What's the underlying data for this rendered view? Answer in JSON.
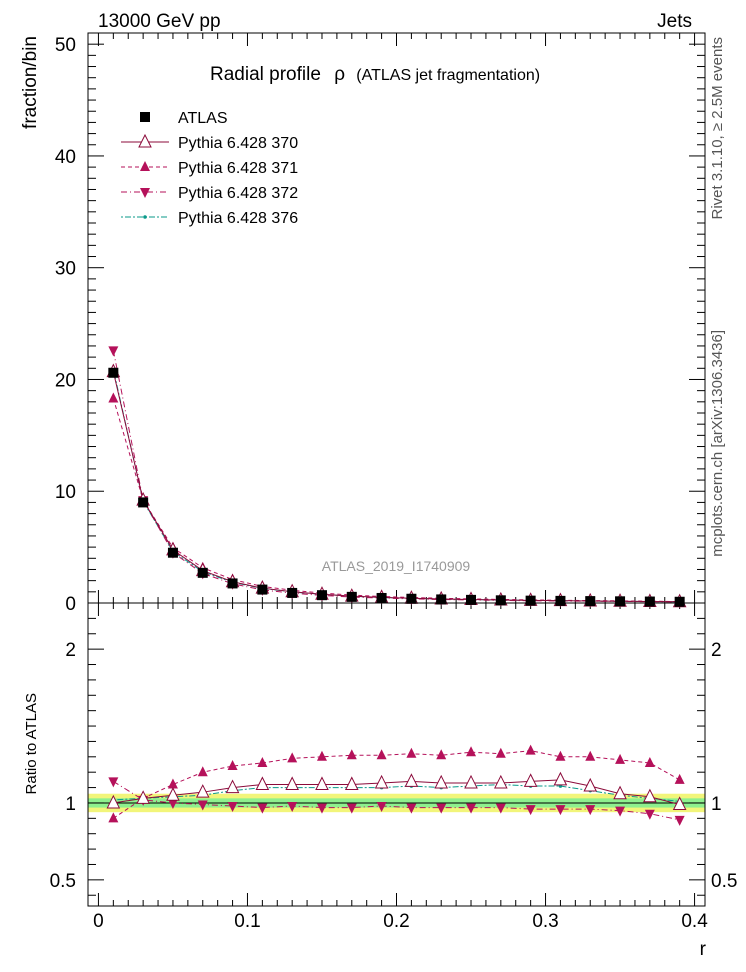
{
  "header": {
    "left": "13000 GeV pp",
    "right": "Jets"
  },
  "title": {
    "main": "Radial profile",
    "symbol": "ρ",
    "sub": "(ATLAS jet fragmentation)"
  },
  "side_labels": {
    "rivet": "Rivet 3.1.10, ≥ 2.5M events",
    "mcplots": "mcplots.cern.ch [arXiv:1306.3436]"
  },
  "watermark": "ATLAS_2019_I1740909",
  "chart_data": [
    {
      "type": "scatter",
      "panel": "main",
      "ylabel": "fraction/bin",
      "xlabel": "",
      "xlim": [
        -0.007,
        0.407
      ],
      "ylim": [
        0,
        51
      ],
      "yticks": [
        0,
        10,
        20,
        30,
        40,
        50
      ],
      "ytick_labels": [
        "0",
        "10",
        "20",
        "30",
        "40",
        "50"
      ],
      "legend_position": "top-left",
      "x": [
        0.01,
        0.03,
        0.05,
        0.07,
        0.09,
        0.11,
        0.13,
        0.15,
        0.17,
        0.19,
        0.21,
        0.23,
        0.25,
        0.27,
        0.29,
        0.31,
        0.33,
        0.35,
        0.37,
        0.39
      ],
      "series": [
        {
          "name": "ATLAS",
          "color": "#000000",
          "marker": "square",
          "values": [
            20.6,
            9.0,
            4.5,
            2.7,
            1.75,
            1.2,
            0.9,
            0.7,
            0.55,
            0.45,
            0.38,
            0.32,
            0.28,
            0.24,
            0.21,
            0.19,
            0.17,
            0.15,
            0.13,
            0.11
          ]
        },
        {
          "name": "Pythia 6.428 370",
          "color": "#8b0a3a",
          "marker": "triangle-open",
          "dash": "",
          "values": [
            20.7,
            9.2,
            4.75,
            2.9,
            1.9,
            1.33,
            1.01,
            0.78,
            0.61,
            0.5,
            0.43,
            0.36,
            0.31,
            0.27,
            0.24,
            0.21,
            0.18,
            0.16,
            0.135,
            0.11
          ]
        },
        {
          "name": "Pythia 6.428 371",
          "color": "#b5115a",
          "marker": "triangle-up",
          "dash": "4,3",
          "values": [
            18.3,
            9.2,
            4.95,
            3.15,
            2.1,
            1.48,
            1.14,
            0.89,
            0.71,
            0.58,
            0.5,
            0.42,
            0.37,
            0.32,
            0.28,
            0.245,
            0.22,
            0.19,
            0.165,
            0.125
          ]
        },
        {
          "name": "Pythia 6.428 372",
          "color": "#b5115a",
          "marker": "triangle-down",
          "dash": "6,3,1,3",
          "values": [
            22.6,
            9.2,
            4.5,
            2.65,
            1.72,
            1.17,
            0.88,
            0.68,
            0.53,
            0.44,
            0.37,
            0.31,
            0.27,
            0.23,
            0.2,
            0.18,
            0.16,
            0.14,
            0.12,
            0.098
          ]
        },
        {
          "name": "Pythia 6.428 376",
          "color": "#0a9a8a",
          "marker": "dot",
          "dash": "2,2,6,2",
          "values": [
            20.9,
            9.1,
            4.6,
            2.8,
            1.85,
            1.3,
            0.99,
            0.77,
            0.6,
            0.49,
            0.42,
            0.35,
            0.31,
            0.27,
            0.23,
            0.21,
            0.18,
            0.155,
            0.13,
            0.11
          ]
        }
      ]
    },
    {
      "type": "scatter",
      "panel": "ratio",
      "ylabel": "Ratio to ATLAS",
      "xlabel": "r",
      "xlim": [
        -0.007,
        0.407
      ],
      "ylim": [
        0.33,
        2.3
      ],
      "yticks": [
        0.5,
        1,
        2
      ],
      "ytick_labels": [
        "0.5",
        "1",
        "2"
      ],
      "xticks": [
        0,
        0.1,
        0.2,
        0.3,
        0.4
      ],
      "xtick_labels": [
        "0",
        "0.1",
        "0.2",
        "0.3",
        "0.4"
      ],
      "reference_band": {
        "inner": 0.03,
        "outer": 0.06
      },
      "x": [
        0.01,
        0.03,
        0.05,
        0.07,
        0.09,
        0.11,
        0.13,
        0.15,
        0.17,
        0.19,
        0.21,
        0.23,
        0.25,
        0.27,
        0.29,
        0.31,
        0.33,
        0.35,
        0.37,
        0.39
      ],
      "series": [
        {
          "name": "Pythia 6.428 370",
          "values": [
            1.0,
            1.03,
            1.05,
            1.07,
            1.1,
            1.12,
            1.12,
            1.12,
            1.12,
            1.13,
            1.14,
            1.13,
            1.13,
            1.13,
            1.14,
            1.15,
            1.11,
            1.06,
            1.04,
            0.99
          ]
        },
        {
          "name": "Pythia 6.428 371",
          "values": [
            0.9,
            1.03,
            1.12,
            1.2,
            1.24,
            1.26,
            1.29,
            1.3,
            1.31,
            1.31,
            1.32,
            1.31,
            1.33,
            1.32,
            1.34,
            1.3,
            1.3,
            1.28,
            1.26,
            1.15
          ]
        },
        {
          "name": "Pythia 6.428 372",
          "values": [
            1.14,
            1.02,
            1.0,
            0.99,
            0.98,
            0.97,
            0.98,
            0.97,
            0.97,
            0.98,
            0.97,
            0.97,
            0.97,
            0.97,
            0.96,
            0.96,
            0.96,
            0.95,
            0.93,
            0.89
          ]
        },
        {
          "name": "Pythia 6.428 376",
          "values": [
            1.02,
            1.03,
            1.04,
            1.05,
            1.08,
            1.1,
            1.1,
            1.1,
            1.1,
            1.1,
            1.11,
            1.1,
            1.11,
            1.12,
            1.11,
            1.11,
            1.08,
            1.05,
            1.03,
            1.01
          ]
        }
      ]
    }
  ]
}
